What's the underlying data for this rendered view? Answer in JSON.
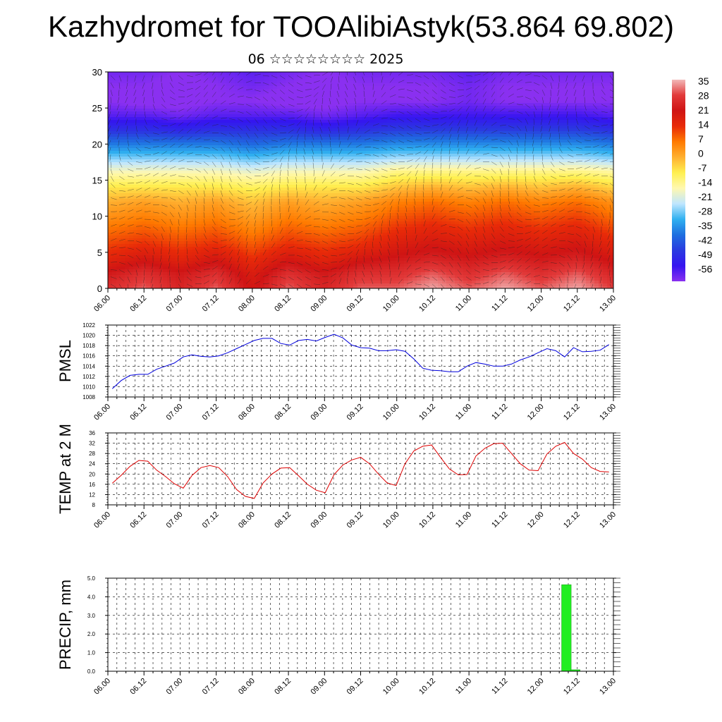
{
  "title": "Kazhydromet for TOOAlibiAstyk(53.864 69.802)",
  "subtitle": "06 ☆☆☆☆☆☆☆☆ 2025",
  "time_labels": [
    "06.00",
    "06.12",
    "07.00",
    "07.12",
    "08.00",
    "08.12",
    "09.00",
    "09.12",
    "10.00",
    "10.12",
    "11.00",
    "11.12",
    "12.00",
    "12.12",
    "13.00"
  ],
  "colorbar": {
    "labels": [
      "35",
      "28",
      "21",
      "14",
      "7",
      "0",
      "-7",
      "-14",
      "-21",
      "-28",
      "-35",
      "-42",
      "-49",
      "-56"
    ],
    "colors": [
      "#f2b8b8",
      "#e23a3a",
      "#cf1414",
      "#e82a08",
      "#ff7a00",
      "#ffb030",
      "#fff050",
      "#fff8b0",
      "#bfe6ff",
      "#30b0f0",
      "#1e6fe0",
      "#2a3ae0",
      "#3514f0",
      "#8a30f0"
    ]
  },
  "chart_data": [
    {
      "type": "heatmap",
      "title": "",
      "ylabel": "",
      "ylim": [
        0,
        30
      ],
      "yticks": [
        0,
        5,
        10,
        15,
        20,
        25,
        30
      ],
      "x": [
        "06.00",
        "06.12",
        "07.00",
        "07.12",
        "08.00",
        "08.12",
        "09.00",
        "09.12",
        "10.00",
        "10.12",
        "11.00",
        "11.12",
        "12.00",
        "12.12",
        "13.00"
      ],
      "levels": [
        0,
        2,
        4,
        6,
        8,
        10,
        12,
        14,
        16,
        18,
        20,
        22,
        24,
        26,
        28,
        30
      ],
      "values_by_level": [
        [
          26,
          30,
          24,
          30,
          20,
          30,
          24,
          30,
          30,
          34,
          30,
          34,
          30,
          34,
          28
        ],
        [
          22,
          26,
          22,
          26,
          18,
          26,
          22,
          26,
          26,
          30,
          26,
          30,
          26,
          30,
          24
        ],
        [
          16,
          20,
          16,
          20,
          14,
          20,
          16,
          20,
          22,
          24,
          22,
          24,
          22,
          24,
          20
        ],
        [
          12,
          14,
          12,
          14,
          10,
          14,
          12,
          14,
          18,
          20,
          18,
          20,
          18,
          20,
          16
        ],
        [
          8,
          10,
          8,
          10,
          6,
          10,
          8,
          10,
          14,
          16,
          14,
          16,
          14,
          16,
          12
        ],
        [
          4,
          6,
          4,
          6,
          2,
          6,
          4,
          6,
          10,
          12,
          10,
          12,
          10,
          12,
          8
        ],
        [
          0,
          2,
          0,
          2,
          -2,
          2,
          0,
          2,
          6,
          8,
          6,
          8,
          6,
          8,
          4
        ],
        [
          -6,
          -6,
          -6,
          -6,
          -8,
          -6,
          -6,
          -6,
          -2,
          0,
          -2,
          0,
          -2,
          0,
          -4
        ],
        [
          -14,
          -14,
          -14,
          -14,
          -16,
          -14,
          -14,
          -14,
          -10,
          -10,
          -10,
          -10,
          -10,
          -10,
          -12
        ],
        [
          -24,
          -24,
          -24,
          -24,
          -26,
          -24,
          -24,
          -24,
          -22,
          -22,
          -22,
          -22,
          -22,
          -22,
          -24
        ],
        [
          -34,
          -34,
          -34,
          -34,
          -36,
          -34,
          -34,
          -34,
          -32,
          -32,
          -32,
          -32,
          -32,
          -32,
          -34
        ],
        [
          -44,
          -44,
          -46,
          -44,
          -44,
          -44,
          -46,
          -44,
          -42,
          -42,
          -42,
          -42,
          -42,
          -42,
          -44
        ],
        [
          -52,
          -52,
          -54,
          -52,
          -52,
          -52,
          -54,
          -52,
          -50,
          -50,
          -50,
          -50,
          -50,
          -50,
          -52
        ],
        [
          -56,
          -58,
          -58,
          -56,
          -56,
          -58,
          -58,
          -56,
          -56,
          -56,
          -54,
          -56,
          -56,
          -56,
          -56
        ],
        [
          -56,
          -56,
          -58,
          -56,
          -54,
          -56,
          -58,
          -56,
          -56,
          -56,
          -54,
          -56,
          -56,
          -56,
          -56
        ],
        [
          -54,
          -54,
          -56,
          -54,
          -52,
          -54,
          -56,
          -54,
          -54,
          -54,
          -52,
          -54,
          -54,
          -54,
          -54
        ]
      ]
    },
    {
      "type": "line",
      "ylabel": "PMSL",
      "ylim": [
        1008,
        1022
      ],
      "yticks": [
        1008,
        1010,
        1012,
        1014,
        1016,
        1018,
        1020,
        1022
      ],
      "color": "#0000dd",
      "x_start": "06.00",
      "x_step_hours": 3,
      "values": [
        1009.6,
        1011.2,
        1012.2,
        1012.4,
        1012.4,
        1013.4,
        1014.0,
        1014.6,
        1015.8,
        1016.2,
        1015.9,
        1015.8,
        1016.0,
        1016.6,
        1017.4,
        1018.2,
        1019.0,
        1019.4,
        1019.4,
        1018.4,
        1018.1,
        1019.0,
        1019.2,
        1018.9,
        1019.6,
        1020.2,
        1019.5,
        1018.1,
        1017.6,
        1017.5,
        1017.0,
        1017.0,
        1017.2,
        1016.9,
        1015.4,
        1013.6,
        1013.2,
        1013.1,
        1012.9,
        1012.9,
        1014.0,
        1014.7,
        1014.4,
        1014.0,
        1014.0,
        1014.4,
        1015.2,
        1015.8,
        1016.6,
        1017.4,
        1017.0,
        1015.8,
        1017.6,
        1016.8,
        1016.9,
        1017.1,
        1018.2
      ]
    },
    {
      "type": "line",
      "ylabel": "TEMP at 2 M",
      "ylim": [
        8,
        36
      ],
      "yticks": [
        8,
        12,
        16,
        20,
        24,
        28,
        32,
        36
      ],
      "color": "#dd0000",
      "x_start": "06.00",
      "x_step_hours": 3,
      "values": [
        16.4,
        19.5,
        23.0,
        25.3,
        25.0,
        21.5,
        19.0,
        16.2,
        14.5,
        19.5,
        22.5,
        23.3,
        22.5,
        19.0,
        14.0,
        11.3,
        10.5,
        16.5,
        20.0,
        22.3,
        22.5,
        19.3,
        16.0,
        13.7,
        12.7,
        19.8,
        23.5,
        25.5,
        26.5,
        24.0,
        20.0,
        16.5,
        15.5,
        24.0,
        29.0,
        30.8,
        31.3,
        26.5,
        22.0,
        19.7,
        19.8,
        27.0,
        30.0,
        31.8,
        32.0,
        28.0,
        24.0,
        21.5,
        21.3,
        27.8,
        30.8,
        32.3,
        28.0,
        25.8,
        22.5,
        21.0,
        20.8
      ]
    },
    {
      "type": "bar",
      "ylabel": "PRECIP, mm",
      "ylim": [
        0,
        5
      ],
      "yticks": [
        "0.0",
        "1.0",
        "2.0",
        "3.0",
        "4.0",
        "5.0"
      ],
      "color": "#22ee22",
      "x_start": "06.00",
      "x_step_hours": 3,
      "bars": [
        {
          "index": 51,
          "value": 4.65
        },
        {
          "index": 52,
          "value": 0.08
        }
      ]
    }
  ]
}
